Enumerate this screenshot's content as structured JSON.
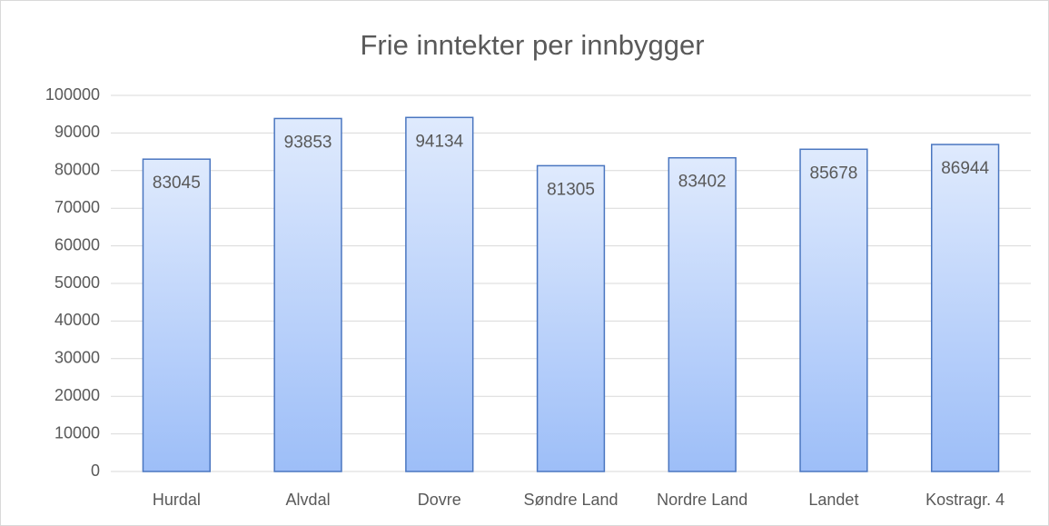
{
  "chart_data": {
    "type": "bar",
    "title": "Frie inntekter per innbygger",
    "categories": [
      "Hurdal",
      "Alvdal",
      "Dovre",
      "Søndre Land",
      "Nordre Land",
      "Landet",
      "Kostragr. 4"
    ],
    "values": [
      83045,
      93853,
      94134,
      81305,
      83402,
      85678,
      86944
    ],
    "color": "#4a76c0",
    "ylim": [
      0,
      100000
    ],
    "yticks": [
      0,
      10000,
      20000,
      30000,
      40000,
      50000,
      60000,
      70000,
      80000,
      90000,
      100000
    ],
    "grid": true
  }
}
